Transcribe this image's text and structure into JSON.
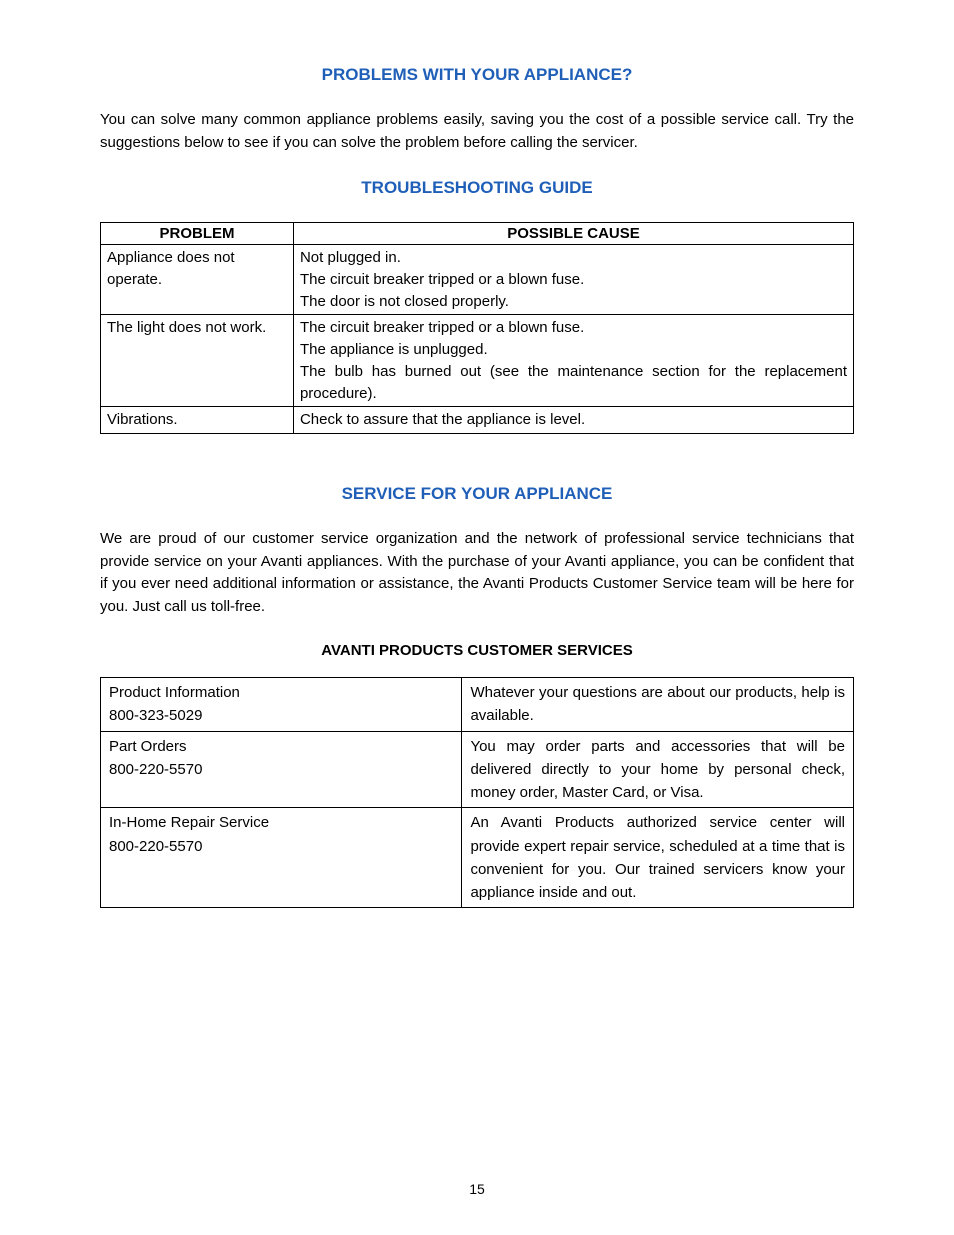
{
  "heading1": "PROBLEMS WITH YOUR APPLIANCE?",
  "intro1": "You can solve many common appliance problems easily, saving you the cost of a possible service call. Try the suggestions below to see if you can solve the problem before calling the servicer.",
  "heading2": "TROUBLESHOOTING GUIDE",
  "troubleshoot": {
    "col1": "PROBLEM",
    "col2": "POSSIBLE CAUSE",
    "rows": [
      {
        "problem": "Appliance does not operate.",
        "cause": "Not plugged in.\nThe circuit breaker tripped or a blown fuse.\nThe door is not closed properly."
      },
      {
        "problem": "The light does not work.",
        "cause": "The circuit breaker tripped or a blown fuse.\nThe appliance is unplugged.\nThe bulb has burned out (see the maintenance section for the replacement procedure)."
      },
      {
        "problem": "Vibrations.",
        "cause": "Check to assure that the appliance is level."
      }
    ]
  },
  "heading3": "SERVICE FOR YOUR APPLIANCE",
  "intro2": "We are proud of our customer service organization and the network of professional service technicians that provide service on your Avanti appliances. With the purchase of your Avanti appliance, you can be confident that if you ever need additional information or assistance, the Avanti Products Customer Service team will be here for you. Just call us toll-free.",
  "heading4": "AVANTI PRODUCTS CUSTOMER SERVICES",
  "services": {
    "rows": [
      {
        "left_line1": "Product Information",
        "left_line2": "800-323-5029",
        "right": "Whatever your questions are about our products, help is available."
      },
      {
        "left_line1": "Part Orders",
        "left_line2": "800-220-5570",
        "right": "You may order parts and accessories that will be delivered directly to your home by personal check, money order, Master Card, or Visa."
      },
      {
        "left_line1": "In-Home Repair Service",
        "left_line2": "800-220-5570",
        "right": "An Avanti Products authorized service center will provide expert repair service, scheduled at a time that is convenient for you. Our trained servicers know your appliance inside and out."
      }
    ]
  },
  "page_number": "15",
  "colors": {
    "heading_blue": "#1f5fb8",
    "text_black": "#000000",
    "border": "#000000",
    "background": "#ffffff"
  },
  "fonts": {
    "heading_size": 17,
    "body_size": 15,
    "page_num_size": 14
  }
}
